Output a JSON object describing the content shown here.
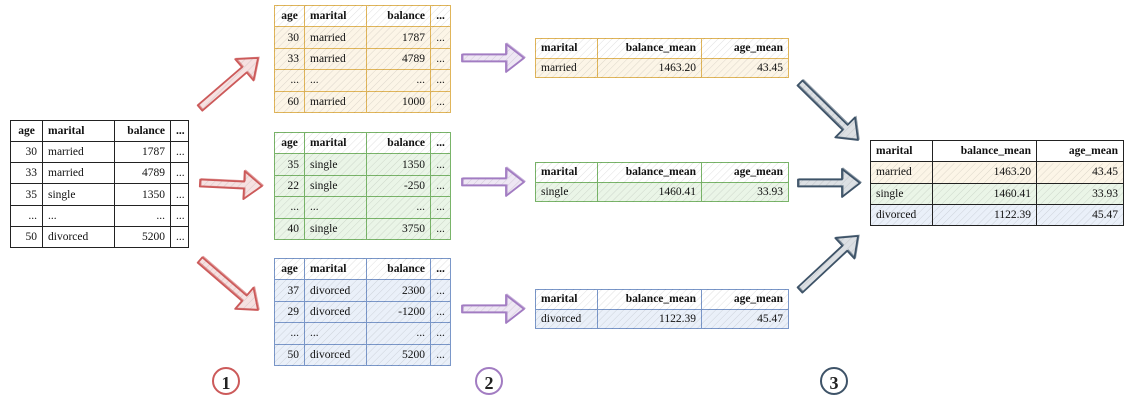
{
  "colors": {
    "black": "#222222",
    "orange": "#e0b55a",
    "green": "#79b469",
    "blue": "#7a97c9",
    "red": "#cc5a5a",
    "purple": "#a27cc2",
    "navy": "#3e5368",
    "fill_orange": "rgba(240,200,120,0.18)",
    "fill_green": "rgba(140,200,120,0.18)",
    "fill_blue": "rgba(140,170,220,0.18)"
  },
  "source_table": {
    "headers": [
      "age",
      "marital",
      "balance",
      "..."
    ],
    "rows": [
      [
        "30",
        "married",
        "1787",
        "..."
      ],
      [
        "33",
        "married",
        "4789",
        "..."
      ],
      [
        "35",
        "single",
        "1350",
        "..."
      ],
      [
        "...",
        "...",
        "...",
        "..."
      ],
      [
        "50",
        "divorced",
        "5200",
        "..."
      ]
    ]
  },
  "split_tables": [
    {
      "group": "married",
      "headers": [
        "age",
        "marital",
        "balance",
        "..."
      ],
      "rows": [
        [
          "30",
          "married",
          "1787",
          "..."
        ],
        [
          "33",
          "married",
          "4789",
          "..."
        ],
        [
          "...",
          "...",
          "...",
          "..."
        ],
        [
          "60",
          "married",
          "1000",
          "..."
        ]
      ]
    },
    {
      "group": "single",
      "headers": [
        "age",
        "marital",
        "balance",
        "..."
      ],
      "rows": [
        [
          "35",
          "single",
          "1350",
          "..."
        ],
        [
          "22",
          "single",
          "-250",
          "..."
        ],
        [
          "...",
          "...",
          "...",
          "..."
        ],
        [
          "40",
          "single",
          "3750",
          "..."
        ]
      ]
    },
    {
      "group": "divorced",
      "headers": [
        "age",
        "marital",
        "balance",
        "..."
      ],
      "rows": [
        [
          "37",
          "divorced",
          "2300",
          "..."
        ],
        [
          "29",
          "divorced",
          "-1200",
          "..."
        ],
        [
          "...",
          "...",
          "...",
          "..."
        ],
        [
          "50",
          "divorced",
          "5200",
          "..."
        ]
      ]
    }
  ],
  "agg_tables": [
    {
      "headers": [
        "marital",
        "balance_mean",
        "age_mean"
      ],
      "row": [
        "married",
        "1463.20",
        "43.45"
      ]
    },
    {
      "headers": [
        "marital",
        "balance_mean",
        "age_mean"
      ],
      "row": [
        "single",
        "1460.41",
        "33.93"
      ]
    },
    {
      "headers": [
        "marital",
        "balance_mean",
        "age_mean"
      ],
      "row": [
        "divorced",
        "1122.39",
        "45.47"
      ]
    }
  ],
  "combined_table": {
    "headers": [
      "marital",
      "balance_mean",
      "age_mean"
    ],
    "rows": [
      [
        "married",
        "1463.20",
        "43.45"
      ],
      [
        "single",
        "1460.41",
        "33.93"
      ],
      [
        "divorced",
        "1122.39",
        "45.47"
      ]
    ]
  },
  "steps": [
    "1",
    "2",
    "3"
  ]
}
